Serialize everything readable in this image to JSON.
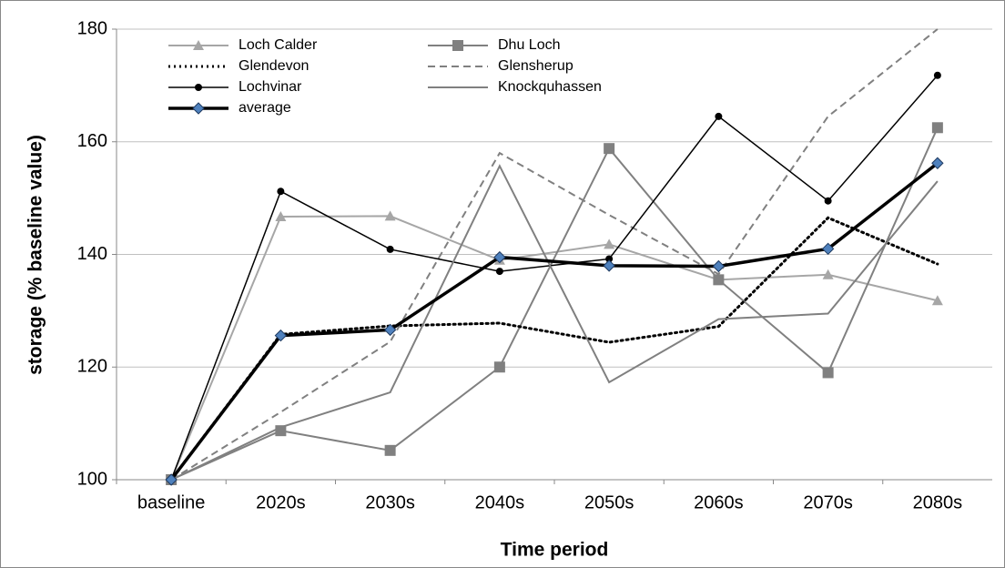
{
  "chart_data": {
    "type": "line",
    "x_label": "Time period",
    "y_label": "storage (% baseline value)",
    "categories": [
      "baseline",
      "2020s",
      "2030s",
      "2040s",
      "2050s",
      "2060s",
      "2070s",
      "2080s"
    ],
    "series": [
      {
        "name": "Loch Calder",
        "color": "#a6a6a6",
        "marker": "triangle",
        "dash": "solid",
        "width": 2,
        "values": [
          100,
          146.7,
          146.8,
          139,
          141.8,
          135.5,
          136.4,
          131.8
        ]
      },
      {
        "name": "Dhu Loch",
        "color": "#808080",
        "marker": "square",
        "dash": "solid",
        "width": 2,
        "values": [
          100,
          108.7,
          105.2,
          120,
          158.8,
          135.5,
          119,
          162.5
        ]
      },
      {
        "name": "Glendevon",
        "color": "#000000",
        "marker": "none",
        "dash": "dotted",
        "width": 3,
        "values": [
          100,
          125.8,
          127.3,
          127.8,
          124.4,
          127.2,
          146.5,
          138.3
        ]
      },
      {
        "name": "Glensherup",
        "color": "#808080",
        "marker": "none",
        "dash": "dashed",
        "width": 2,
        "values": [
          100,
          112,
          124.5,
          158,
          147,
          136.5,
          164.5,
          180
        ]
      },
      {
        "name": "Lochvinar",
        "color": "#000000",
        "marker": "circle",
        "dash": "solid",
        "width": 1.5,
        "values": [
          100,
          151.2,
          140.9,
          137,
          139.2,
          164.5,
          149.5,
          171.8
        ]
      },
      {
        "name": "Knockquhassen",
        "color": "#808080",
        "marker": "none",
        "dash": "solid",
        "width": 2,
        "values": [
          100,
          109.3,
          115.5,
          155.7,
          117.3,
          128.5,
          129.5,
          153
        ]
      },
      {
        "name": "average",
        "color": "#000000",
        "marker": "diamond",
        "marker_color": "#4f81bd",
        "dash": "solid",
        "width": 3.5,
        "values": [
          100,
          125.6,
          126.6,
          139.5,
          138,
          137.9,
          141,
          156.2
        ]
      }
    ],
    "ylim": [
      100,
      180
    ],
    "yticks": [
      100,
      120,
      140,
      160,
      180
    ],
    "grid": true,
    "legend": "top-left"
  }
}
